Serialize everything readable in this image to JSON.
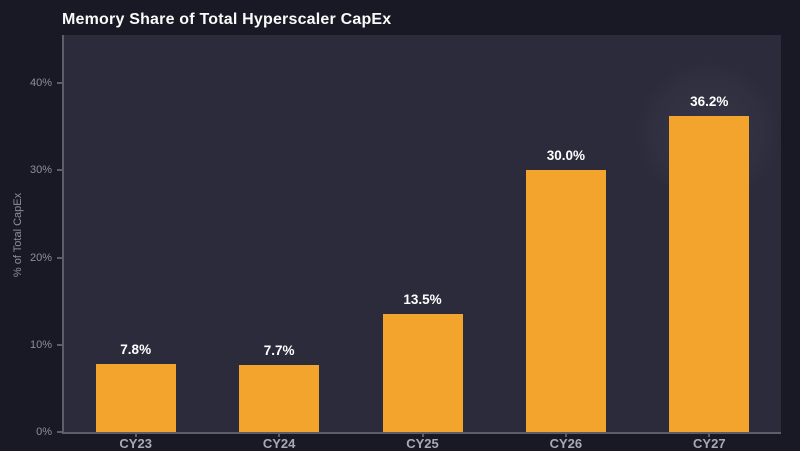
{
  "chart_data": {
    "type": "bar",
    "title": "Memory Share of Total Hyperscaler CapEx",
    "categories": [
      "CY23",
      "CY24",
      "CY25",
      "CY26",
      "CY27"
    ],
    "values": [
      7.8,
      7.7,
      13.5,
      30.0,
      36.2
    ],
    "value_labels": [
      "7.8%",
      "7.7%",
      "13.5%",
      "30.0%",
      "36.2%"
    ],
    "xlabel": "",
    "ylabel": "% of Total CapEx",
    "ylim": [
      0,
      45.5
    ],
    "yticks": [
      {
        "value": 0,
        "label": "0%"
      },
      {
        "value": 10,
        "label": "10%"
      },
      {
        "value": 20,
        "label": "20%"
      },
      {
        "value": 30,
        "label": "30%"
      },
      {
        "value": 40,
        "label": "40%"
      }
    ],
    "grid": false,
    "legend": null,
    "colors": {
      "bar": "#F2A42C",
      "value_label": "#FFFFFF",
      "title": "#FAFAFA",
      "axis_line": "#5D5D6E",
      "y_tick_label": "#8E8E9C",
      "category_label": "#A9A9B5",
      "plot_background": "#2B2B3C",
      "page_background": "#191925"
    }
  }
}
